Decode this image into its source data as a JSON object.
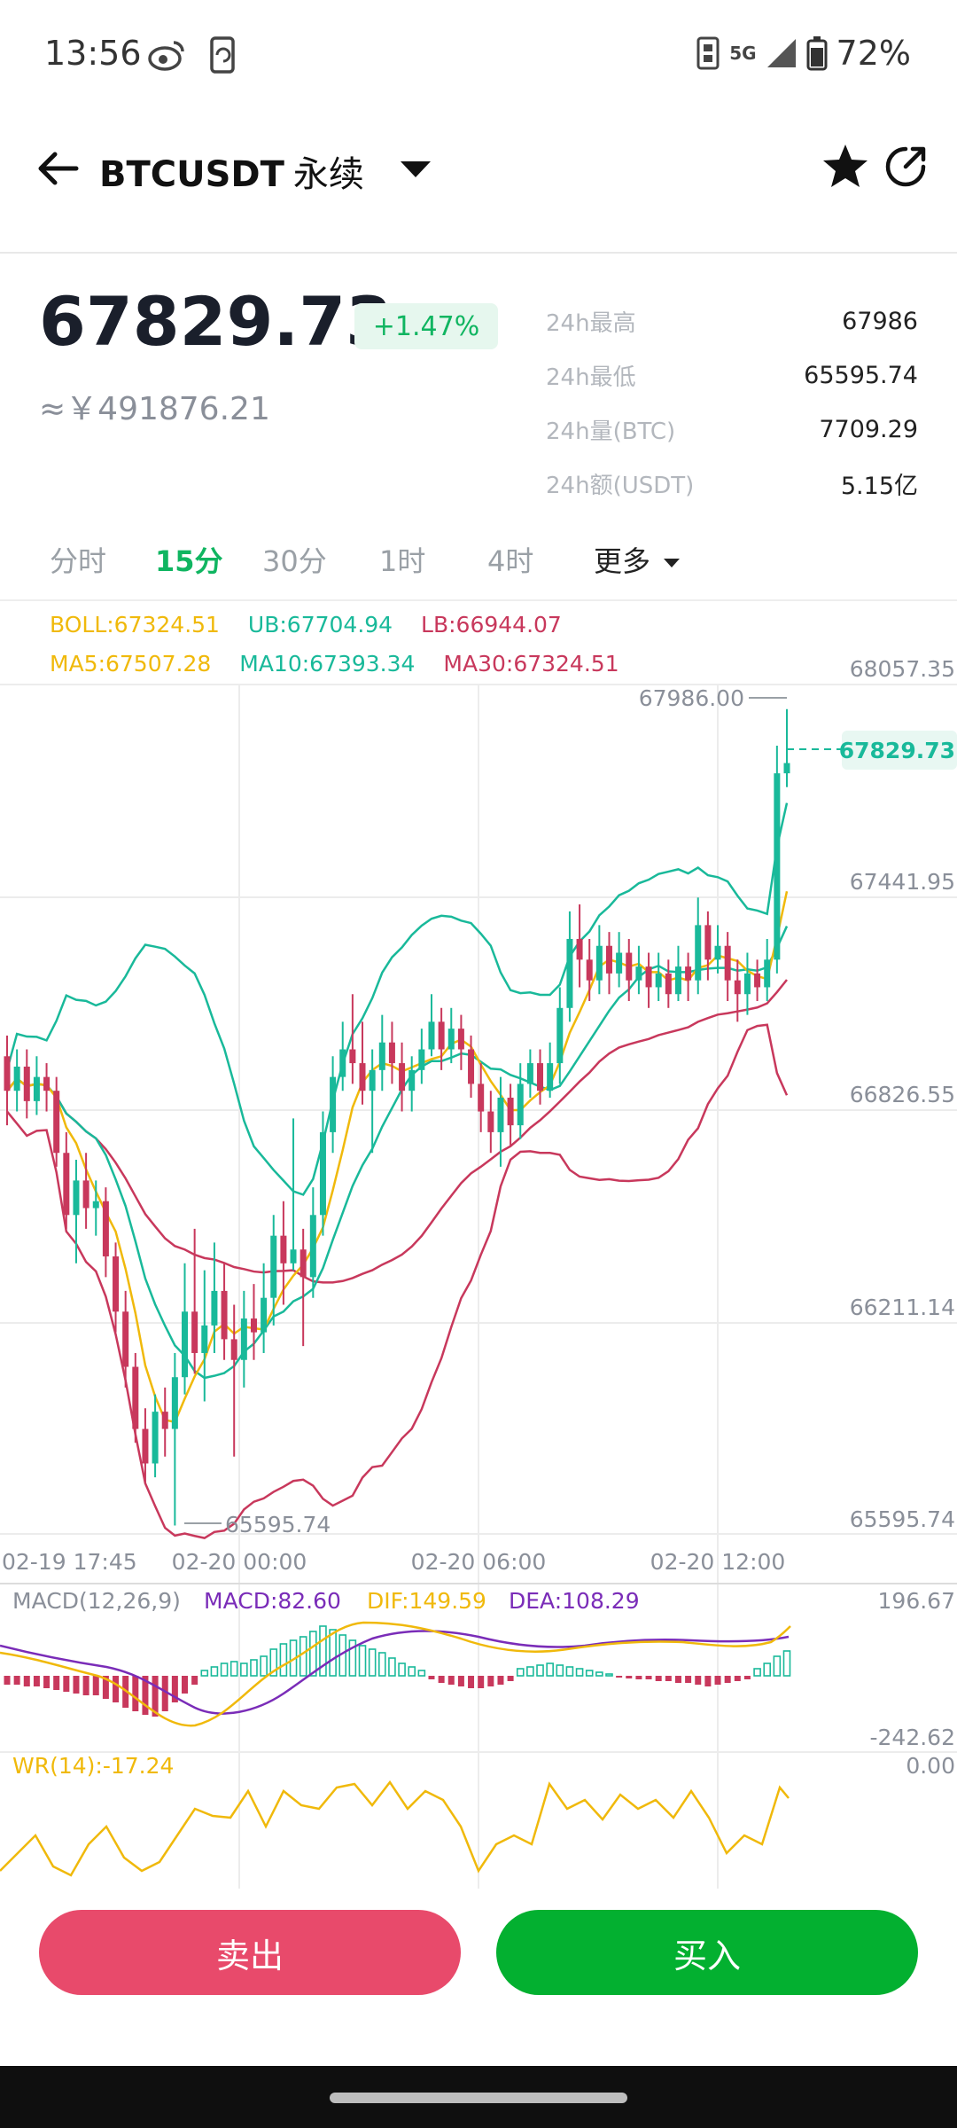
{
  "status_bar": {
    "time": "13:56",
    "signal_label": "5G",
    "battery": "72%",
    "icons": [
      "weibo-icon",
      "phone-sync-icon",
      "nfc-icon",
      "signal-icon",
      "battery-icon"
    ]
  },
  "header": {
    "symbol": "BTCUSDT",
    "contract_type": "永续",
    "icons": [
      "back-arrow-icon",
      "caret-down-icon",
      "star-icon",
      "share-icon"
    ]
  },
  "ticker": {
    "last_price": "67829.73",
    "change_pct": "+1.47%",
    "cny_price": "≈￥491876.21",
    "stats": [
      {
        "label": "24h最高",
        "value": "67986"
      },
      {
        "label": "24h最低",
        "value": "65595.74"
      },
      {
        "label": "24h量(BTC)",
        "value": "7709.29"
      },
      {
        "label": "24h额(USDT)",
        "value": "5.15亿"
      }
    ]
  },
  "tabs": [
    {
      "label": "分时",
      "active": false
    },
    {
      "label": "15分",
      "active": true
    },
    {
      "label": "30分",
      "active": false
    },
    {
      "label": "1时",
      "active": false
    },
    {
      "label": "4时",
      "active": false
    },
    {
      "label": "更多",
      "active": false
    }
  ],
  "indicators": {
    "boll": "BOLL:67324.51",
    "ub": "UB:67704.94",
    "lb": "LB:66944.07",
    "ma5": "MA5:67507.28",
    "ma10": "MA10:67393.34",
    "ma30": "MA30:67324.51"
  },
  "colors": {
    "up": "#19b99a",
    "down": "#c8385c",
    "yellow": "#f0b90b",
    "purple": "#7a2cb8",
    "sell": "#e84a6b",
    "buy": "#03b030"
  },
  "chart_data": {
    "type": "line",
    "price_axis": [
      "68057.35",
      "67441.95",
      "66826.55",
      "66211.14",
      "65595.74"
    ],
    "ylim": [
      65595.74,
      68057.35
    ],
    "time_axis": [
      "02-19 17:45",
      "02-20 00:00",
      "02-20 06:00",
      "02-20 12:00"
    ],
    "high_marker": "67986.00",
    "low_marker": "65595.74",
    "current_price_label": "67829.73",
    "candles": [
      [
        66980,
        66880,
        67040,
        66780
      ],
      [
        66880,
        66950,
        67000,
        66820
      ],
      [
        66950,
        66850,
        67000,
        66800
      ],
      [
        66850,
        66920,
        66980,
        66810
      ],
      [
        66920,
        66880,
        66960,
        66820
      ],
      [
        66880,
        66700,
        66920,
        66660
      ],
      [
        66700,
        66520,
        66760,
        66480
      ],
      [
        66520,
        66620,
        66680,
        66380
      ],
      [
        66620,
        66540,
        66700,
        66480
      ],
      [
        66540,
        66560,
        66620,
        66460
      ],
      [
        66560,
        66400,
        66600,
        66340
      ],
      [
        66400,
        66240,
        66440,
        66180
      ],
      [
        66240,
        66080,
        66300,
        66020
      ],
      [
        66080,
        65900,
        66120,
        65860
      ],
      [
        65900,
        65800,
        65960,
        65740
      ],
      [
        65800,
        65950,
        66000,
        65760
      ],
      [
        65950,
        65900,
        66020,
        65820
      ],
      [
        65900,
        66050,
        66120,
        65620
      ],
      [
        66050,
        66240,
        66380,
        66000
      ],
      [
        66240,
        66120,
        66480,
        66060
      ],
      [
        66120,
        66200,
        66360,
        65980
      ],
      [
        66200,
        66300,
        66440,
        66120
      ],
      [
        66300,
        66160,
        66380,
        66100
      ],
      [
        66160,
        66100,
        66260,
        65820
      ],
      [
        66100,
        66220,
        66300,
        66020
      ],
      [
        66220,
        66180,
        66320,
        66100
      ],
      [
        66180,
        66280,
        66380,
        66120
      ],
      [
        66280,
        66460,
        66520,
        66200
      ],
      [
        66460,
        66380,
        66560,
        66260
      ],
      [
        66380,
        66420,
        66800,
        66360
      ],
      [
        66420,
        66340,
        66480,
        66140
      ],
      [
        66340,
        66520,
        66600,
        66280
      ],
      [
        66520,
        66760,
        66820,
        66460
      ],
      [
        66760,
        66920,
        66980,
        66700
      ],
      [
        66920,
        67000,
        67080,
        66880
      ],
      [
        67000,
        66960,
        67160,
        66900
      ],
      [
        66960,
        66880,
        67080,
        66840
      ],
      [
        66880,
        66940,
        67000,
        66700
      ],
      [
        66940,
        67020,
        67100,
        66880
      ],
      [
        67020,
        66960,
        67080,
        66900
      ],
      [
        66960,
        66880,
        67020,
        66820
      ],
      [
        66880,
        66940,
        66980,
        66820
      ],
      [
        66940,
        67000,
        67060,
        66900
      ],
      [
        67000,
        67080,
        67160,
        66980
      ],
      [
        67080,
        67000,
        67120,
        66940
      ],
      [
        67000,
        67060,
        67120,
        66960
      ],
      [
        67060,
        67000,
        67100,
        66940
      ],
      [
        67000,
        66900,
        67040,
        66860
      ],
      [
        66900,
        66820,
        66960,
        66760
      ],
      [
        66820,
        66760,
        66880,
        66700
      ],
      [
        66760,
        66860,
        66920,
        66660
      ],
      [
        66860,
        66780,
        66900,
        66720
      ],
      [
        66780,
        66900,
        66960,
        66740
      ],
      [
        66900,
        66960,
        67000,
        66860
      ],
      [
        66960,
        66880,
        67000,
        66840
      ],
      [
        66880,
        66960,
        67020,
        66860
      ],
      [
        66960,
        67120,
        67180,
        66900
      ],
      [
        67120,
        67320,
        67400,
        67080
      ],
      [
        67320,
        67260,
        67420,
        67180
      ],
      [
        67260,
        67200,
        67320,
        67140
      ],
      [
        67200,
        67300,
        67360,
        67160
      ],
      [
        67300,
        67220,
        67340,
        67160
      ],
      [
        67220,
        67280,
        67340,
        67180
      ],
      [
        67280,
        67200,
        67320,
        67140
      ],
      [
        67200,
        67240,
        67300,
        67160
      ],
      [
        67240,
        67180,
        67280,
        67120
      ],
      [
        67180,
        67220,
        67280,
        67140
      ],
      [
        67220,
        67160,
        67260,
        67120
      ],
      [
        67160,
        67240,
        67300,
        67140
      ],
      [
        67240,
        67200,
        67280,
        67140
      ],
      [
        67200,
        67360,
        67440,
        67160
      ],
      [
        67360,
        67260,
        67400,
        67200
      ],
      [
        67260,
        67300,
        67360,
        67220
      ],
      [
        67300,
        67200,
        67340,
        67140
      ],
      [
        67200,
        67160,
        67260,
        67080
      ],
      [
        67160,
        67220,
        67280,
        67100
      ],
      [
        67220,
        67180,
        67260,
        67140
      ],
      [
        67180,
        67260,
        67320,
        67140
      ],
      [
        67260,
        67800,
        67880,
        67220
      ],
      [
        67800,
        67829.73,
        67986,
        67760
      ]
    ]
  },
  "macd": {
    "label": "MACD(12,26,9)",
    "macd": "MACD:82.60",
    "dif": "DIF:149.59",
    "dea": "DEA:108.29",
    "axis_top": "196.67",
    "axis_bottom": "-242.62"
  },
  "wr": {
    "label": "WR(14):-17.24",
    "axis_top": "0.00"
  },
  "actions": {
    "sell": "卖出",
    "buy": "买入"
  }
}
